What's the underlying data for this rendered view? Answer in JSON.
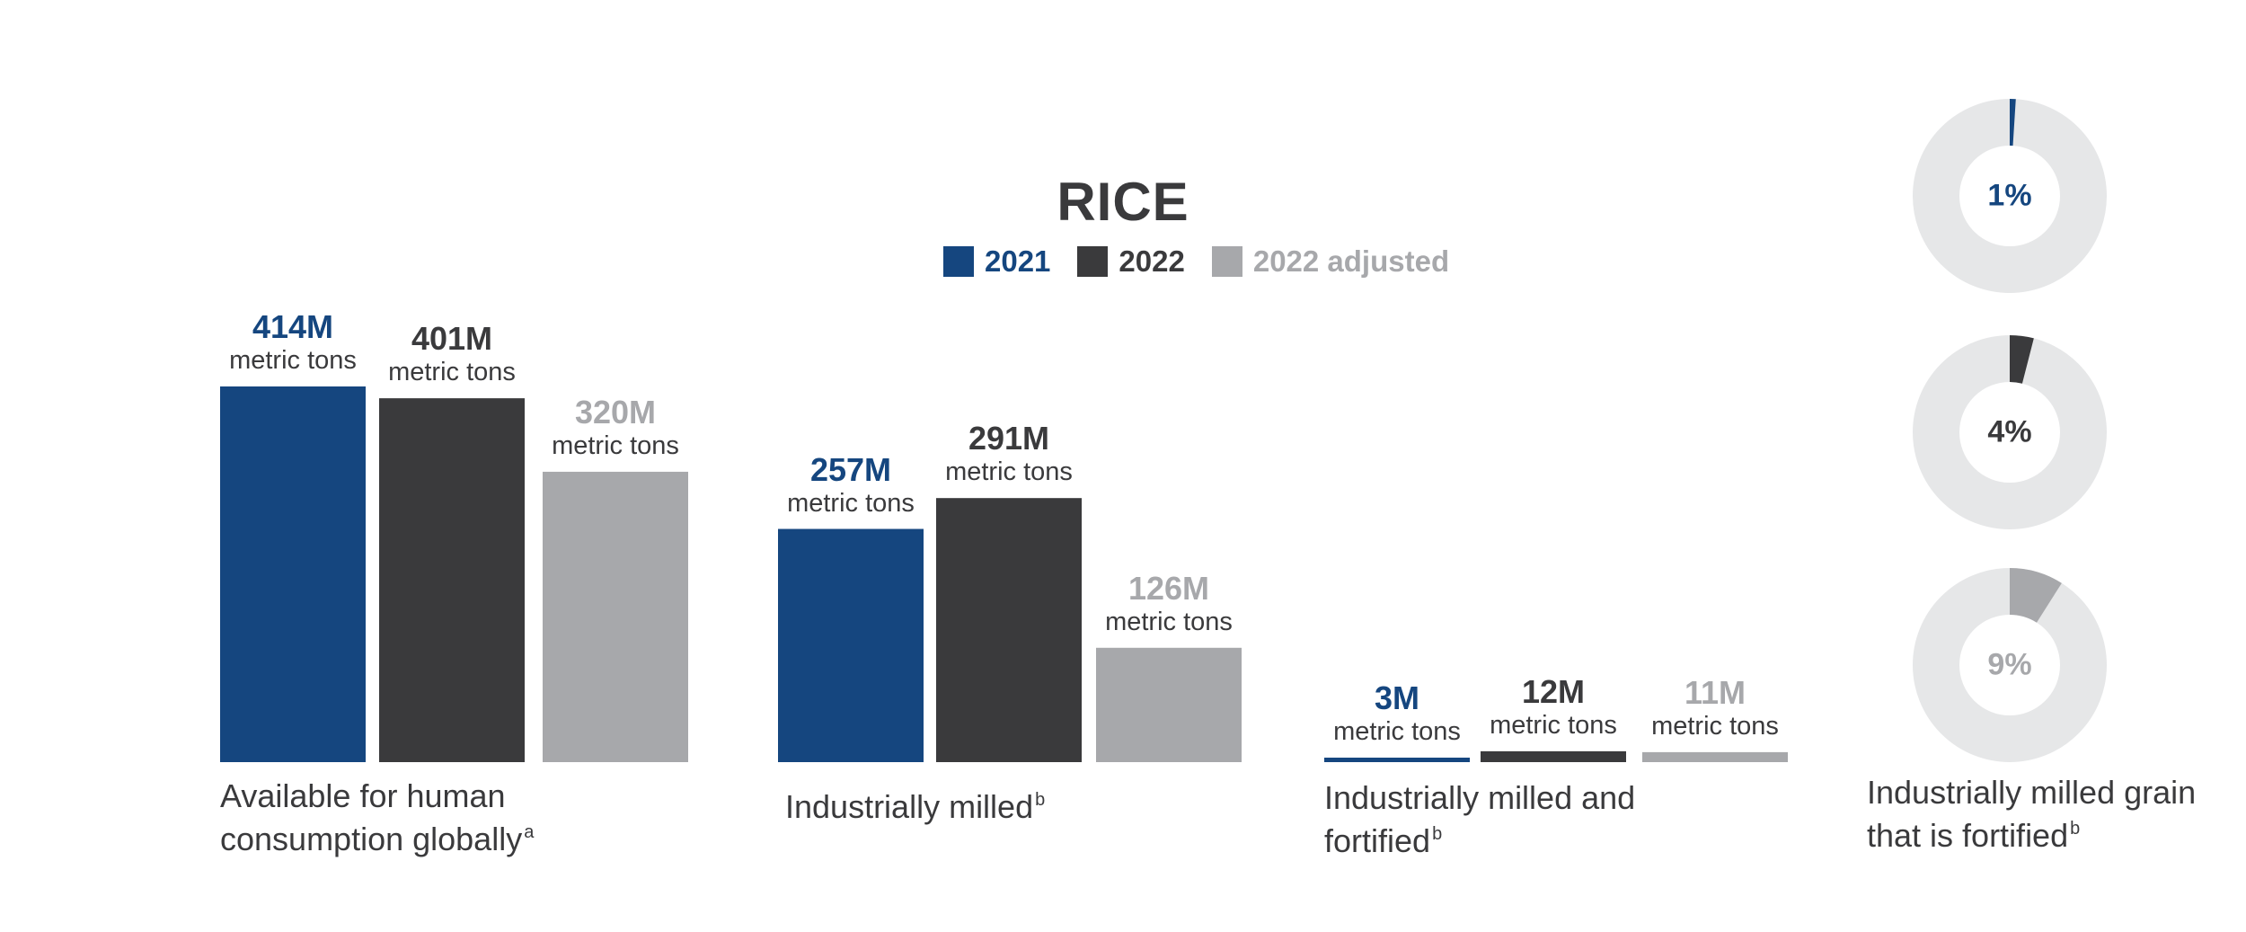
{
  "colors": {
    "y2021": "#15467f",
    "y2022": "#3a3a3c",
    "y2022adj": "#a7a8ab",
    "donut_track": "#e6e7e8",
    "text": "#3a3a3c"
  },
  "chart_data": {
    "type": "bar",
    "title": "RICE",
    "legend": [
      "2021",
      "2022",
      "2022 adjusted"
    ],
    "legend_position": "top-center",
    "unit_label": "metric tons",
    "categories": [
      {
        "label": "Available for human consumption globally",
        "footnote": "a"
      },
      {
        "label": "Industrially milled",
        "footnote": "b"
      },
      {
        "label": "Industrially milled and fortified",
        "footnote": "b"
      }
    ],
    "series": [
      {
        "name": "2021",
        "values": [
          414,
          257,
          3
        ],
        "value_labels": [
          "414M",
          "257M",
          "3M"
        ]
      },
      {
        "name": "2022",
        "values": [
          401,
          291,
          12
        ],
        "value_labels": [
          "401M",
          "291M",
          "12M"
        ]
      },
      {
        "name": "2022 adjusted",
        "values": [
          320,
          126,
          11
        ],
        "value_labels": [
          "320M",
          "126M",
          "11M"
        ]
      }
    ],
    "value_unit": "million metric tons",
    "ylim": [
      0,
      414
    ],
    "grid": false,
    "donuts": {
      "label": "Industrially milled grain that is fortified",
      "footnote": "b",
      "items": [
        {
          "series": "2021",
          "percent": 1,
          "label": "1%"
        },
        {
          "series": "2022",
          "percent": 4,
          "label": "4%"
        },
        {
          "series": "2022 adjusted",
          "percent": 9,
          "label": "9%"
        }
      ]
    }
  }
}
